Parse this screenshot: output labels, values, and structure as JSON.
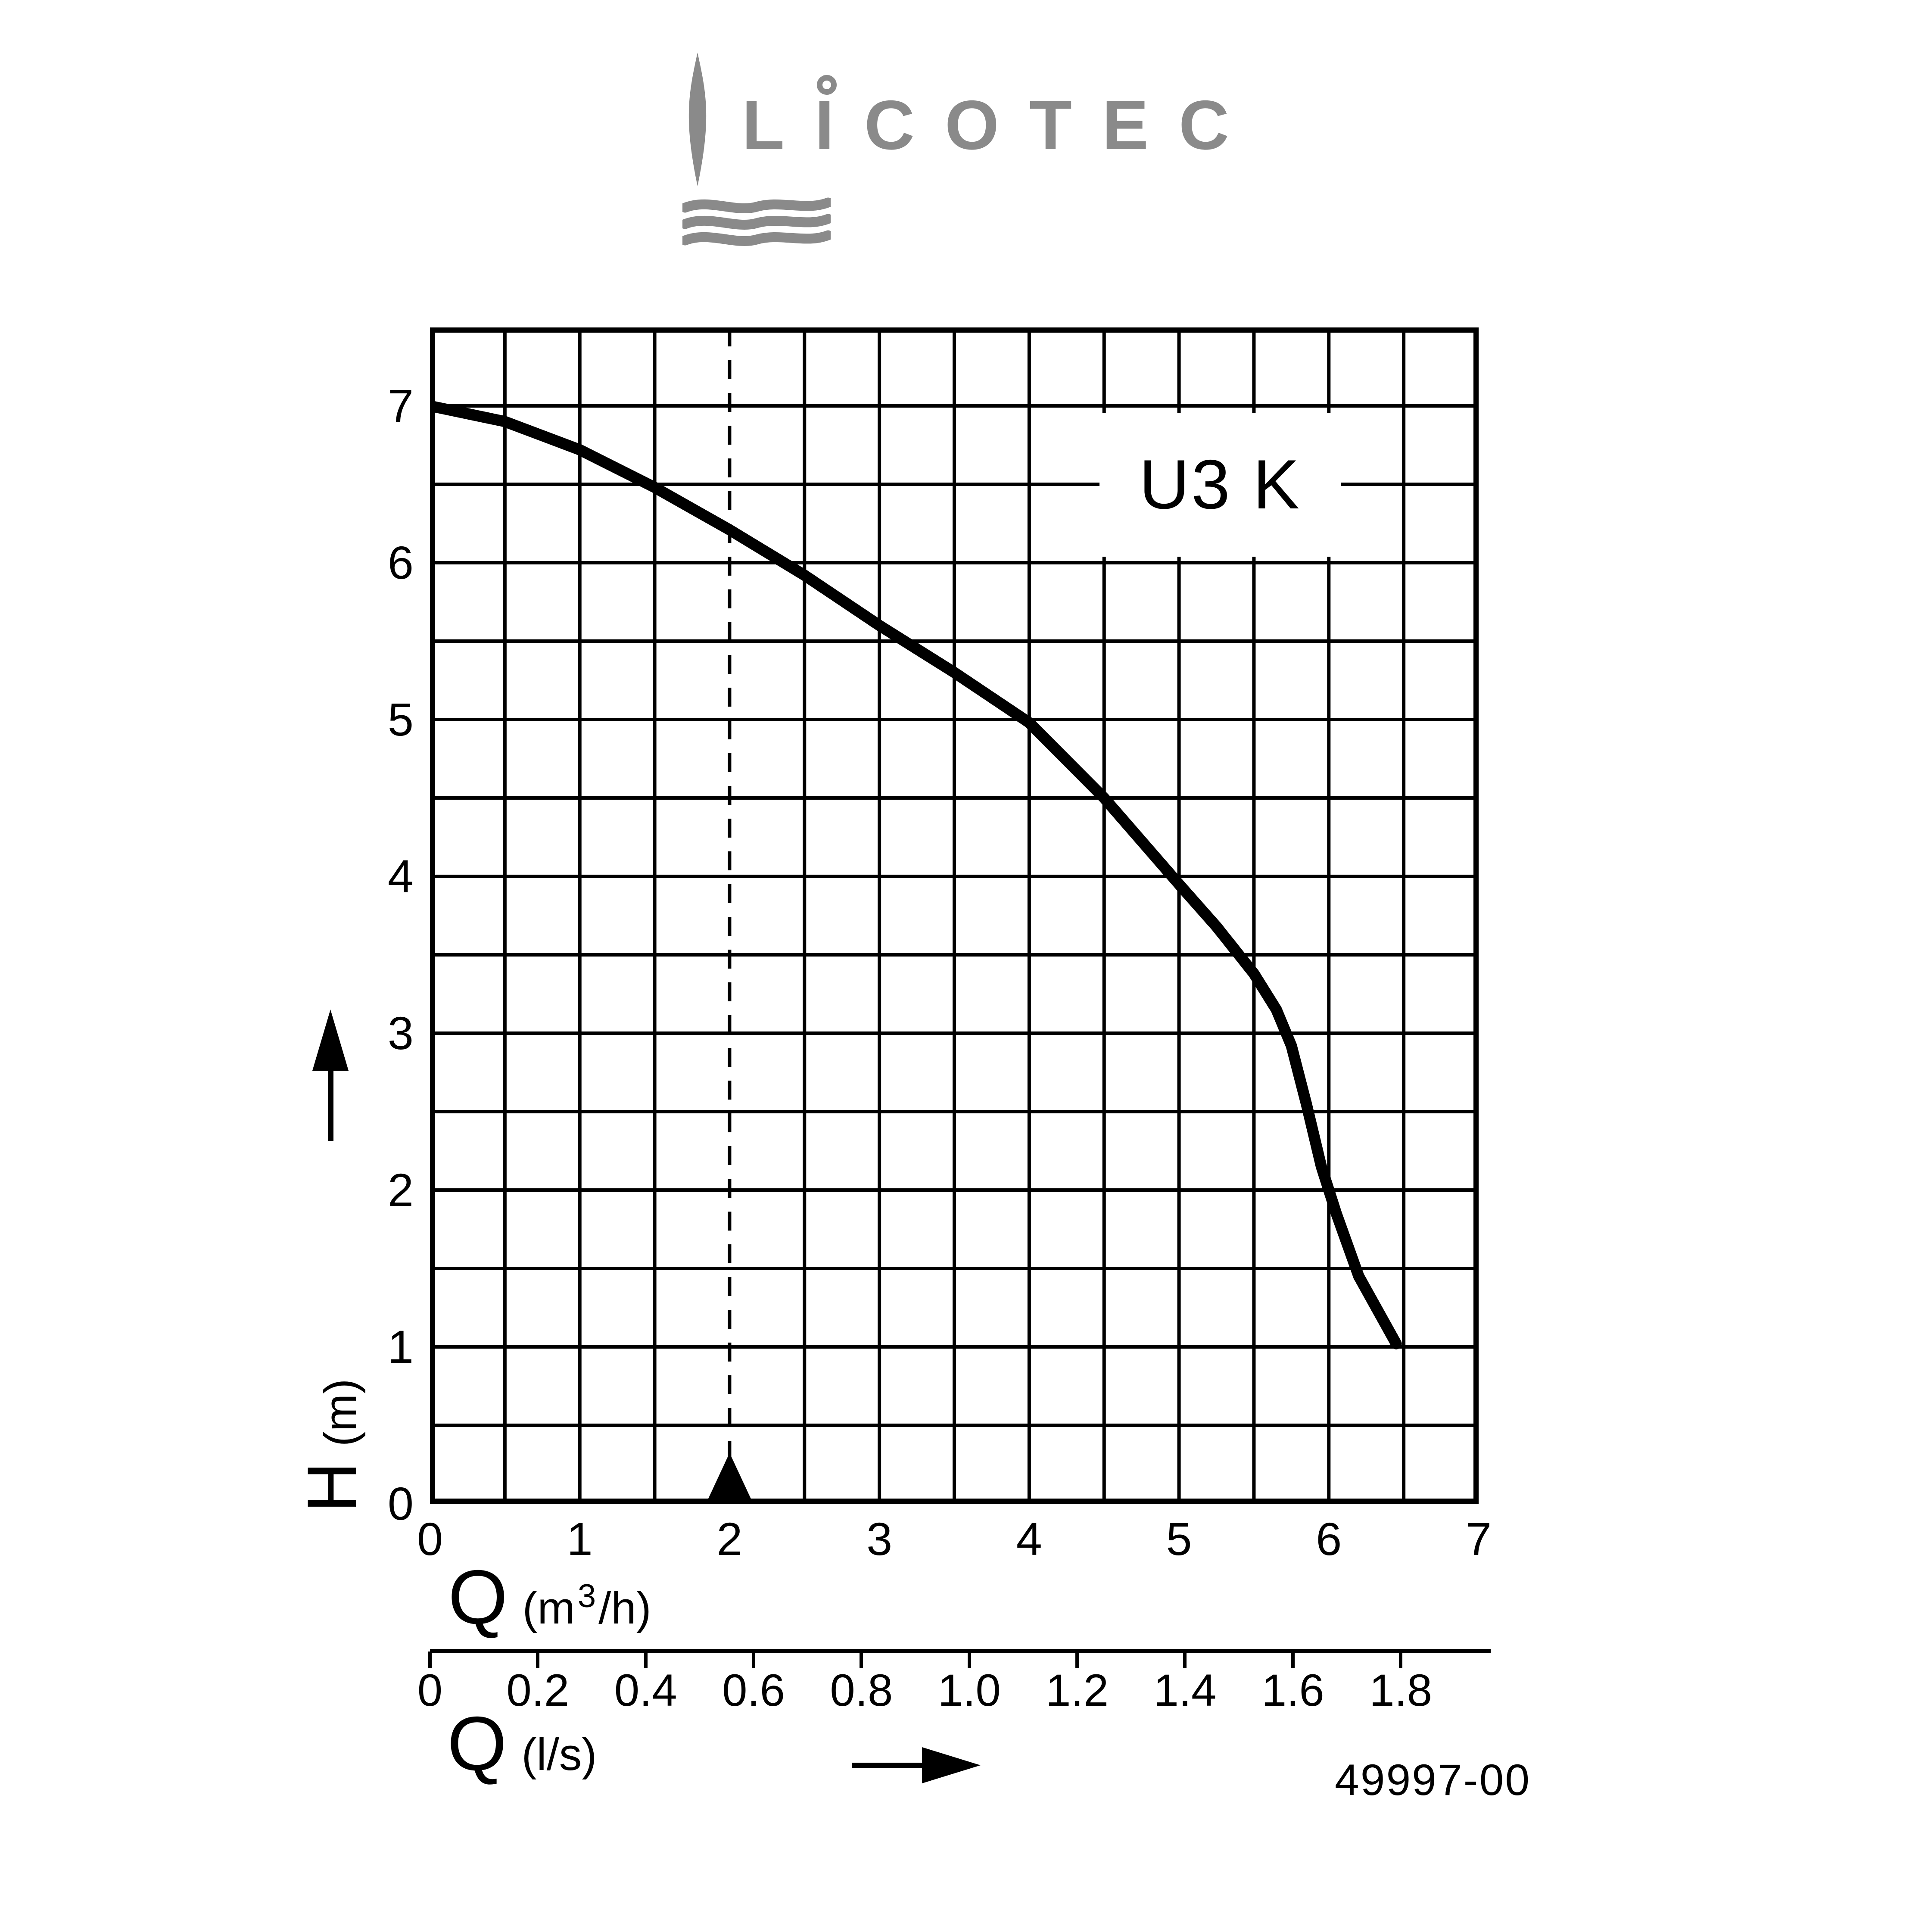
{
  "logo": {
    "brand": "LICOTEC",
    "color": "#8a8a8a",
    "icons": [
      "flame-icon",
      "i-ring-icon",
      "water-waves-icon"
    ]
  },
  "chart_data": {
    "type": "line",
    "title": "U3 K",
    "grid": true,
    "grid_step": {
      "x": 0.5,
      "y": 0.5
    },
    "x_axis_primary": {
      "symbol": "Q",
      "unit_pre": "(m",
      "unit_sup": "3",
      "unit_post": "/h)",
      "unit_full": "(m³/h)",
      "range": [
        0,
        7
      ],
      "ticks": [
        "0",
        "1",
        "2",
        "3",
        "4",
        "5",
        "6",
        "7"
      ]
    },
    "x_axis_secondary": {
      "symbol": "Q",
      "unit": "(l/s)",
      "ticks": [
        "0",
        "0.2",
        "0.4",
        "0.6",
        "0.8",
        "1.0",
        "1.2",
        "1.4",
        "1.6",
        "1.8"
      ],
      "tick_step_ls": 0.2,
      "ls_to_m3h": 3.6
    },
    "y_axis": {
      "symbol": "H",
      "unit": "(m)",
      "range": [
        0,
        7.5
      ],
      "ticks": [
        "7",
        "6",
        "5",
        "4",
        "3",
        "2",
        "1",
        "0"
      ]
    },
    "series": [
      {
        "name": "U3 K",
        "points_q_h": [
          [
            0,
            7.0
          ],
          [
            0.5,
            6.9
          ],
          [
            1.0,
            6.72
          ],
          [
            1.5,
            6.48
          ],
          [
            2.0,
            6.21
          ],
          [
            2.5,
            5.92
          ],
          [
            3.0,
            5.6
          ],
          [
            3.5,
            5.3
          ],
          [
            4.0,
            4.98
          ],
          [
            4.5,
            4.5
          ],
          [
            5.0,
            3.95
          ],
          [
            5.25,
            3.68
          ],
          [
            5.5,
            3.38
          ],
          [
            5.65,
            3.15
          ],
          [
            5.75,
            2.92
          ],
          [
            5.85,
            2.55
          ],
          [
            5.95,
            2.15
          ],
          [
            6.05,
            1.85
          ],
          [
            6.2,
            1.45
          ],
          [
            6.45,
            1.02
          ]
        ]
      }
    ],
    "marker": {
      "q": 2,
      "style": "dashed vertical guide line with filled triangle on x-axis"
    },
    "drawing_number": "49997-00"
  }
}
